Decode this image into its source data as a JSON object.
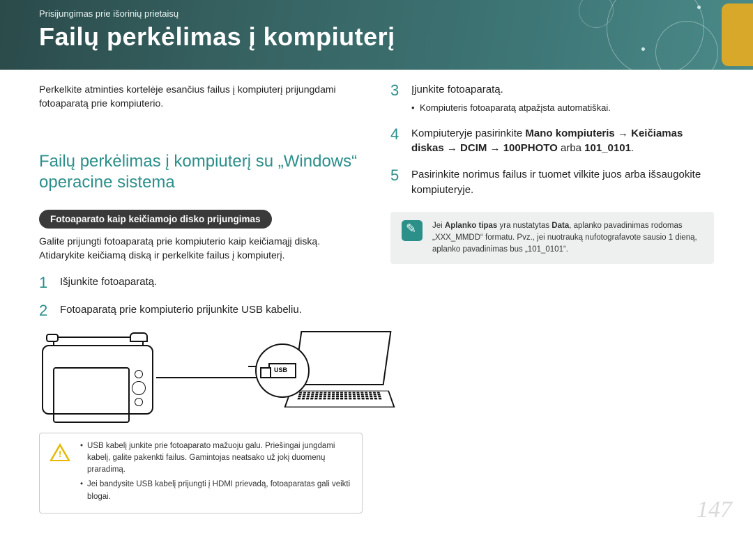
{
  "header": {
    "breadcrumb": "Prisijungimas prie išorinių prietaisų",
    "title": "Failų perkėlimas į kompiuterį",
    "band_gradient_from": "#2b4a4a",
    "band_gradient_to": "#4a8a88",
    "tab_color": "#d7a829"
  },
  "intro": "Perkelkite atminties kortelėje esančius failus į kompiuterį prijungdami fotoaparatą prie kompiuterio.",
  "section_heading": "Failų perkėlimas į kompiuterį su „Windows“ operacine sistema",
  "pill": "Fotoaparato kaip keičiamojo disko prijungimas",
  "pill_bg": "#3a3a3a",
  "body_after_pill": "Galite prijungti fotoaparatą prie kompiuterio kaip keičiamąjį diską. Atidarykite keičiamą diską ir perkelkite failus į kompiuterį.",
  "accent_color": "#2b8f8a",
  "steps_left": [
    {
      "n": "1",
      "text": "Išjunkite fotoaparatą."
    },
    {
      "n": "2",
      "text": "Fotoaparatą prie kompiuterio prijunkite USB kabeliu."
    }
  ],
  "warn_note": [
    "USB kabelį junkite prie fotoaparato mažuoju galu. Priešingai jungdami kabelį, galite pakenkti failus. Gamintojas neatsako už jokį duomenų praradimą.",
    "Jei bandysite USB kabelį prijungti į HDMI prievadą, fotoaparatas gali veikti blogai."
  ],
  "steps_right": [
    {
      "n": "3",
      "text": "Įjunkite fotoaparatą.",
      "sub": "Kompiuteris fotoaparatą atpažįsta automatiškai."
    },
    {
      "n": "4",
      "html_parts": [
        "Kompiuteryje pasirinkite ",
        "Mano kompiuteris",
        " → ",
        "Keičiamas diskas",
        " → ",
        "DCIM",
        " → ",
        "100PHOTO",
        " arba ",
        "101_0101",
        "."
      ]
    },
    {
      "n": "5",
      "text": "Pasirinkite norimus failus ir tuomet vilkite juos arba išsaugokite kompiuteryje."
    }
  ],
  "info_note_parts": [
    "Jei ",
    "Aplanko tipas",
    " yra nustatytas ",
    "Data",
    ", aplanko pavadinimas rodomas „XXX_MMDD“ formatu. Pvz., jei nuotrauką nufotografavote sausio 1 dieną, aplanko pavadinimas bus „101_0101“."
  ],
  "info_bg": "#eef0f0",
  "page_number": "147",
  "page_number_color": "#d8dbd8"
}
